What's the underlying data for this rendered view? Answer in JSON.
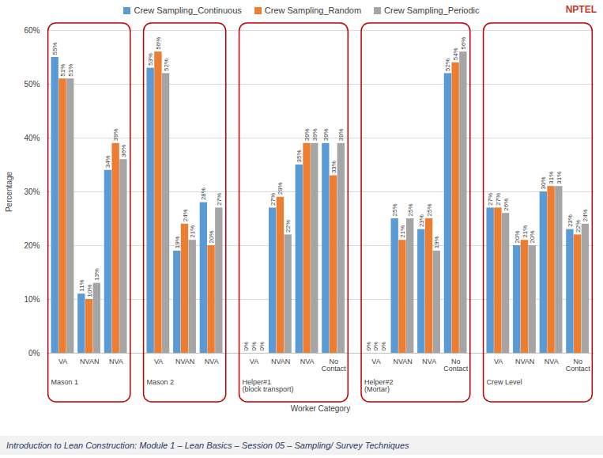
{
  "chart_data": {
    "type": "bar",
    "xlabel": "Worker Category",
    "ylabel": "Percentage",
    "groups": [
      {
        "name": "Mason 1",
        "categories": [
          "VA",
          "NVAN",
          "NVA"
        ]
      },
      {
        "name": "Mason 2",
        "categories": [
          "VA",
          "NVAN",
          "NVA"
        ]
      },
      {
        "name": "Helper#1 (block transport)",
        "categories": [
          "VA",
          "NVAN",
          "NVA",
          "No Contact"
        ]
      },
      {
        "name": "Helper#2 (Mortar)",
        "categories": [
          "VA",
          "NVAN",
          "NVA",
          "No Contact"
        ]
      },
      {
        "name": "Crew Level",
        "categories": [
          "VA",
          "NVAN",
          "NVA",
          "No Contact"
        ]
      }
    ],
    "series": [
      {
        "name": "Crew Sampling_Continuous",
        "color": "#5b9bd5",
        "values": [
          55,
          11,
          34,
          53,
          19,
          28,
          0,
          27,
          35,
          39,
          0,
          25,
          23,
          52,
          27,
          20,
          30,
          23
        ],
        "value_labels": [
          "55%",
          "11%",
          "34%",
          "53%",
          "19%",
          "28%",
          "0%",
          "27%",
          "35%",
          "39%",
          "0%",
          "25%",
          "23%",
          "52%",
          "27%",
          "20%",
          "30%",
          "23%"
        ]
      },
      {
        "name": "Crew Sampling_Random",
        "color": "#ed7d31",
        "values": [
          51,
          10,
          39,
          56,
          24,
          20,
          0,
          29,
          39,
          33,
          0,
          21,
          25,
          54,
          27,
          21,
          31,
          22
        ],
        "value_labels": [
          "51%",
          "10%",
          "39%",
          "56%",
          "24%",
          "20%",
          "0%",
          "29%",
          "39%",
          "33%",
          "0%",
          "21%",
          "25%",
          "54%",
          "27%",
          "21%",
          "31%",
          "22%"
        ]
      },
      {
        "name": "Crew Sampling_Periodic",
        "color": "#a5a5a5",
        "values": [
          51,
          13,
          36,
          52,
          21,
          27,
          0,
          22,
          39,
          39,
          0,
          25,
          19,
          56,
          26,
          20,
          31,
          24
        ],
        "value_labels": [
          "51%",
          "13%",
          "36%",
          "52%",
          "21%",
          "27%",
          "0%",
          "22%",
          "39%",
          "39%",
          "0%",
          "25%",
          "19%",
          "56%",
          "26%",
          "20%",
          "31%",
          "24%"
        ]
      }
    ],
    "ylim": [
      0,
      60
    ],
    "yticks": [
      {
        "value": 0,
        "label": "0%"
      },
      {
        "value": 10,
        "label": "10%"
      },
      {
        "value": 20,
        "label": "20%"
      },
      {
        "value": 30,
        "label": "30%"
      },
      {
        "value": 40,
        "label": "40%"
      },
      {
        "value": 50,
        "label": "50%"
      },
      {
        "value": 60,
        "label": "60%"
      }
    ],
    "grid": true,
    "data_labels": true,
    "legend": "top"
  },
  "logo_text": "NPTEL",
  "footer": "Introduction to Lean Construction: Module 1 – Lean Basics – Session 05 – Sampling/ Survey Techniques"
}
